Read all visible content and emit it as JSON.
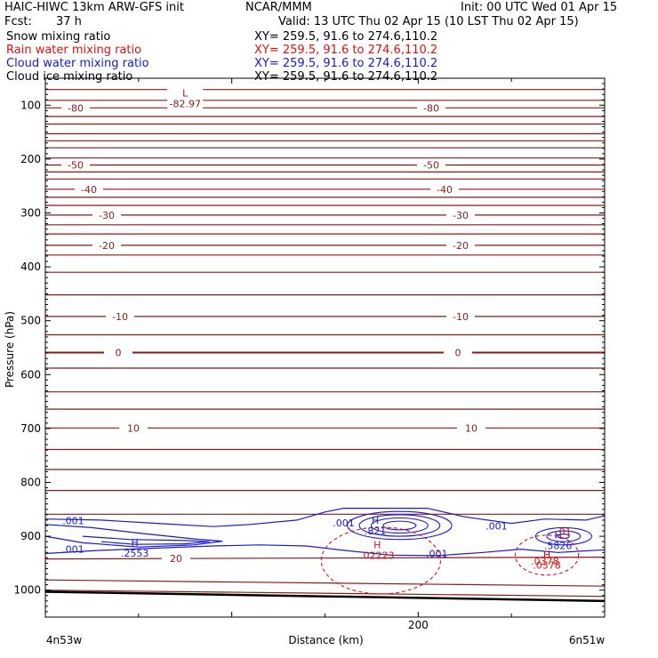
{
  "header": {
    "title": "HAIC-HIWC 13km ARW-GFS init",
    "org": "NCAR/MMM",
    "init": "Init: 00 UTC Wed 01 Apr 15",
    "fcst_label": "Fcst:",
    "fcst_value": "37 h",
    "valid": "Valid: 13 UTC Thu 02 Apr 15 (10 LST Thu 02 Apr 15)"
  },
  "fields": [
    {
      "name": "Snow mixing ratio",
      "xy": "XY= 259.5, 91.6 to 274.6,110.2",
      "color": "#000000"
    },
    {
      "name": "Rain water mixing ratio",
      "xy": "XY= 259.5, 91.6 to 274.6,110.2",
      "color": "#dd1111"
    },
    {
      "name": "Cloud water mixing ratio",
      "xy": "XY= 259.5, 91.6 to 274.6,110.2",
      "color": "#1a1acc"
    },
    {
      "name": "Cloud ice mixing ratio",
      "xy": "XY= 259.5, 91.6 to 274.6,110.2",
      "color": "#000000"
    }
  ],
  "chart_data": {
    "type": "line",
    "title": "",
    "xlabel": "Distance (km)",
    "ylabel": "Pressure (hPa)",
    "ylim": [
      1050,
      50
    ],
    "xlim": [
      0,
      300
    ],
    "yticks": [
      100,
      200,
      300,
      400,
      500,
      600,
      700,
      800,
      900,
      1000
    ],
    "xticks": [
      200
    ],
    "x_start_label": "4n53w",
    "x_end_label": "6n51w",
    "temperature_isotherms": [
      {
        "label": "-80",
        "p": 105
      },
      {
        "label": "-50",
        "p": 211
      },
      {
        "label": "-40",
        "p": 256
      },
      {
        "label": "-30",
        "p": 304
      },
      {
        "label": "-20",
        "p": 360
      },
      {
        "label": "-10",
        "p": 492
      },
      {
        "label": "0",
        "p": 559
      },
      {
        "label": "10",
        "p": 699
      },
      {
        "label": "20",
        "p": 942
      }
    ],
    "unlabeled_isotherm_p": [
      71,
      91,
      121,
      135,
      153,
      166,
      179,
      198,
      224,
      237,
      271,
      286,
      322,
      339,
      378,
      410,
      452,
      526,
      588,
      632,
      664,
      739,
      776,
      815,
      859,
      981,
      1000
    ],
    "extrema": [
      {
        "kind": "L",
        "value": "-82.97",
        "field": "temperature",
        "x": 75,
        "p": 84
      },
      {
        "kind": "H",
        "value": ".2553",
        "field": "cloud water",
        "x": 48,
        "p": 918
      },
      {
        "kind": "H",
        "value": ".821",
        "field": "cloud water",
        "x": 177,
        "p": 877
      },
      {
        "kind": "H",
        "value": ".5826",
        "field": "cloud water",
        "x": 275,
        "p": 904
      },
      {
        "kind": "H",
        "value": ".02223",
        "field": "rain water",
        "x": 178,
        "p": 922
      },
      {
        "kind": "H",
        "value": ".0378",
        "field": "rain water",
        "x": 269,
        "p": 940
      }
    ],
    "contour_labels": [
      {
        "text": ".001",
        "field": "cloud water",
        "x": 15,
        "p": 871
      },
      {
        "text": ".001",
        "field": "cloud water",
        "x": 15,
        "p": 924
      },
      {
        "text": ".001",
        "field": "cloud water",
        "x": 160,
        "p": 875
      },
      {
        "text": ".001",
        "field": "cloud water",
        "x": 242,
        "p": 881
      },
      {
        "text": ".001",
        "field": "cloud water",
        "x": 210,
        "p": 932
      },
      {
        "text": ".01",
        "field": "rain water",
        "x": 278,
        "p": 891
      },
      {
        "text": ".0378",
        "field": "rain water",
        "x": 268,
        "p": 946
      }
    ]
  },
  "colors": {
    "isotherm": "#8b1a1a",
    "cloud_water": "#1a1acc",
    "rain_water": "#dd1111",
    "terrain": "#000000"
  }
}
